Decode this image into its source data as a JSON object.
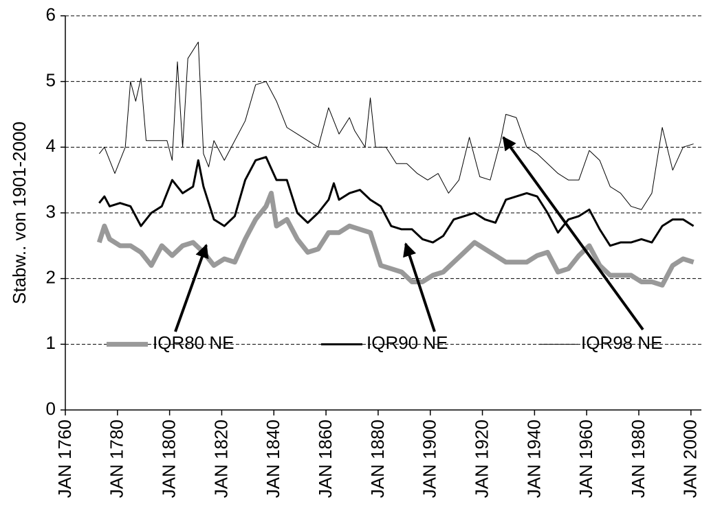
{
  "chart_data": {
    "type": "line",
    "ylabel": "Stabw.. von 1901-2000",
    "xlim": [
      1760,
      2004
    ],
    "ylim": [
      0,
      6
    ],
    "yticks": [
      0,
      1,
      2,
      3,
      4,
      5,
      6
    ],
    "xticks": [
      {
        "value": 1760,
        "label": "JAN 1760"
      },
      {
        "value": 1780,
        "label": "JAN 1780"
      },
      {
        "value": 1800,
        "label": "JAN 1800"
      },
      {
        "value": 1820,
        "label": "JAN 1820"
      },
      {
        "value": 1840,
        "label": "JAN 1840"
      },
      {
        "value": 1860,
        "label": "JAN 1860"
      },
      {
        "value": 1880,
        "label": "JAN 1880"
      },
      {
        "value": 1900,
        "label": "JAN 1900"
      },
      {
        "value": 1920,
        "label": "JAN 1920"
      },
      {
        "value": 1940,
        "label": "JAN 1940"
      },
      {
        "value": 1960,
        "label": "JAN 1960"
      },
      {
        "value": 1980,
        "label": "JAN 1980"
      },
      {
        "value": 2000,
        "label": "JAN 2000"
      }
    ],
    "grid": true,
    "series": [
      {
        "name": "IQR80 NE",
        "color": "#999999",
        "x": [
          1773,
          1775,
          1777,
          1781,
          1785,
          1789,
          1793,
          1797,
          1801,
          1805,
          1809,
          1813,
          1817,
          1821,
          1825,
          1829,
          1833,
          1837,
          1839,
          1841,
          1845,
          1849,
          1853,
          1857,
          1861,
          1865,
          1869,
          1873,
          1877,
          1881,
          1885,
          1889,
          1893,
          1897,
          1901,
          1905,
          1909,
          1913,
          1917,
          1921,
          1925,
          1929,
          1933,
          1937,
          1941,
          1945,
          1949,
          1953,
          1957,
          1961,
          1965,
          1969,
          1973,
          1977,
          1981,
          1985,
          1989,
          1993,
          1997,
          2001
        ],
        "values": [
          2.55,
          2.8,
          2.6,
          2.5,
          2.5,
          2.4,
          2.2,
          2.5,
          2.35,
          2.5,
          2.55,
          2.4,
          2.2,
          2.3,
          2.25,
          2.6,
          2.9,
          3.1,
          3.3,
          2.8,
          2.9,
          2.6,
          2.4,
          2.45,
          2.7,
          2.7,
          2.8,
          2.75,
          2.7,
          2.2,
          2.15,
          2.1,
          1.95,
          1.95,
          2.05,
          2.1,
          2.25,
          2.4,
          2.55,
          2.45,
          2.35,
          2.25,
          2.25,
          2.25,
          2.35,
          2.4,
          2.1,
          2.15,
          2.35,
          2.5,
          2.2,
          2.05,
          2.05,
          2.05,
          1.95,
          1.95,
          1.9,
          2.2,
          2.3,
          2.25
        ]
      },
      {
        "name": "IQR90 NE",
        "color": "#000000",
        "x": [
          1773,
          1775,
          1777,
          1781,
          1785,
          1789,
          1793,
          1797,
          1801,
          1805,
          1809,
          1811,
          1813,
          1817,
          1821,
          1825,
          1829,
          1833,
          1837,
          1841,
          1845,
          1849,
          1853,
          1857,
          1861,
          1863,
          1865,
          1869,
          1873,
          1877,
          1881,
          1885,
          1889,
          1893,
          1897,
          1901,
          1905,
          1909,
          1913,
          1917,
          1921,
          1925,
          1929,
          1933,
          1937,
          1941,
          1945,
          1949,
          1953,
          1957,
          1961,
          1965,
          1969,
          1973,
          1977,
          1981,
          1985,
          1989,
          1993,
          1997,
          2001
        ],
        "values": [
          3.15,
          3.25,
          3.1,
          3.15,
          3.1,
          2.8,
          3.0,
          3.1,
          3.5,
          3.3,
          3.4,
          3.8,
          3.4,
          2.9,
          2.8,
          2.95,
          3.5,
          3.8,
          3.85,
          3.5,
          3.5,
          3.0,
          2.85,
          3.0,
          3.2,
          3.45,
          3.2,
          3.3,
          3.35,
          3.2,
          3.1,
          2.8,
          2.75,
          2.75,
          2.6,
          2.55,
          2.65,
          2.9,
          2.95,
          3.0,
          2.9,
          2.85,
          3.2,
          3.25,
          3.3,
          3.25,
          3.0,
          2.7,
          2.9,
          2.95,
          3.05,
          2.75,
          2.5,
          2.55,
          2.55,
          2.6,
          2.55,
          2.8,
          2.9,
          2.9,
          2.8
        ]
      },
      {
        "name": "IQR98 NE",
        "color": "#000000",
        "x": [
          1773,
          1775,
          1779,
          1783,
          1785,
          1787,
          1789,
          1791,
          1795,
          1799,
          1801,
          1803,
          1805,
          1807,
          1811,
          1813,
          1815,
          1817,
          1821,
          1825,
          1829,
          1833,
          1837,
          1841,
          1845,
          1849,
          1853,
          1857,
          1861,
          1865,
          1869,
          1871,
          1875,
          1877,
          1879,
          1883,
          1887,
          1891,
          1895,
          1899,
          1903,
          1907,
          1911,
          1915,
          1919,
          1923,
          1927,
          1929,
          1933,
          1937,
          1941,
          1945,
          1949,
          1953,
          1957,
          1961,
          1965,
          1969,
          1973,
          1977,
          1981,
          1985,
          1989,
          1993,
          1997,
          2001
        ],
        "values": [
          3.9,
          4.0,
          3.6,
          4.0,
          5.0,
          4.7,
          5.05,
          4.1,
          4.1,
          4.1,
          3.8,
          5.3,
          4.0,
          5.35,
          5.6,
          3.9,
          3.7,
          4.1,
          3.8,
          4.1,
          4.4,
          4.95,
          5.0,
          4.7,
          4.3,
          4.2,
          4.1,
          4.0,
          4.6,
          4.2,
          4.45,
          4.25,
          4.0,
          4.75,
          4.0,
          4.0,
          3.75,
          3.75,
          3.6,
          3.5,
          3.6,
          3.3,
          3.5,
          4.15,
          3.55,
          3.5,
          4.1,
          4.5,
          4.45,
          4.0,
          3.9,
          3.75,
          3.6,
          3.5,
          3.5,
          3.95,
          3.8,
          3.4,
          3.3,
          3.1,
          3.05,
          3.3,
          4.3,
          3.65,
          4.0,
          4.05
        ]
      }
    ]
  }
}
